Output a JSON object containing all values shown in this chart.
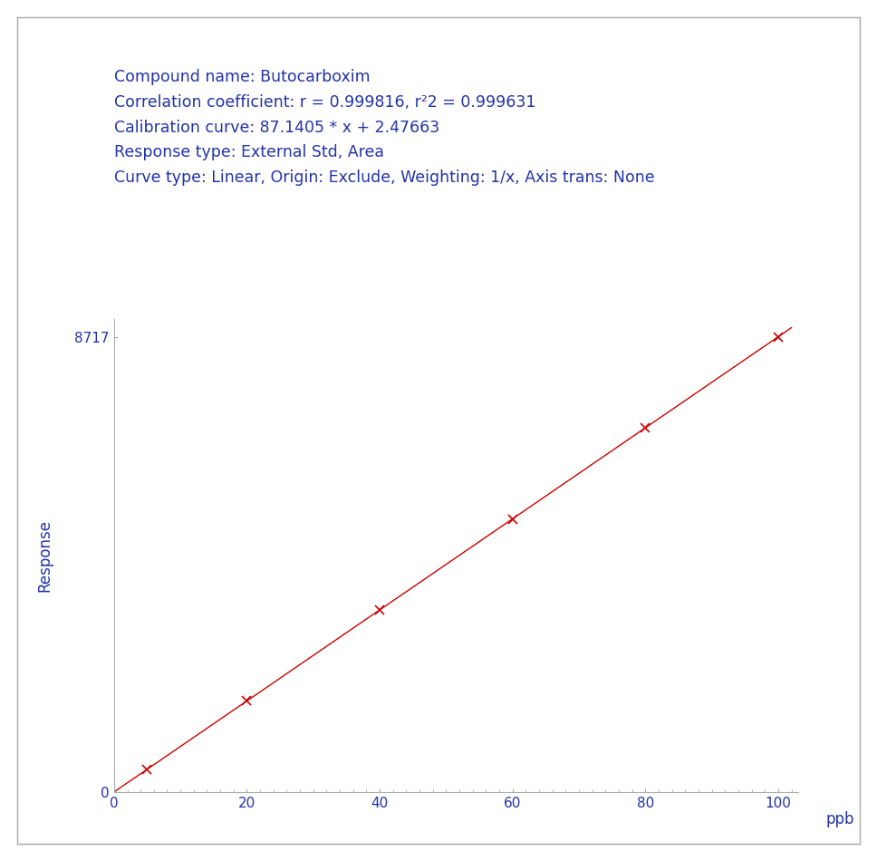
{
  "compound_name": "Compound name: Butocarboxim",
  "correlation": "Correlation coefficient: r = 0.999816, r²2 = 0.999631",
  "calibration": "Calibration curve: 87.1405 * x + 2.47663",
  "response_type": "Response type: External Std, Area",
  "curve_type": "Curve type: Linear, Origin: Exclude, Weighting: 1/x, Axis trans: None",
  "slope": 87.1405,
  "intercept": 2.47663,
  "x_data": [
    5,
    20,
    40,
    60,
    80,
    100
  ],
  "x_min": 0,
  "x_max": 100,
  "y_min": 0,
  "y_max": 8717,
  "x_label": "ppb",
  "y_label": "Response",
  "y_tick": 8717,
  "x_ticks": [
    0,
    20,
    40,
    60,
    80,
    100
  ],
  "line_color": "#cc0000",
  "marker_color": "#cc0000",
  "text_color": "#2233aa",
  "axis_color": "#aaaaaa",
  "background_color": "#ffffff",
  "fig_background": "#ffffff",
  "font_size_annotation": 12.5,
  "font_size_axis_label": 12,
  "font_size_tick": 11
}
